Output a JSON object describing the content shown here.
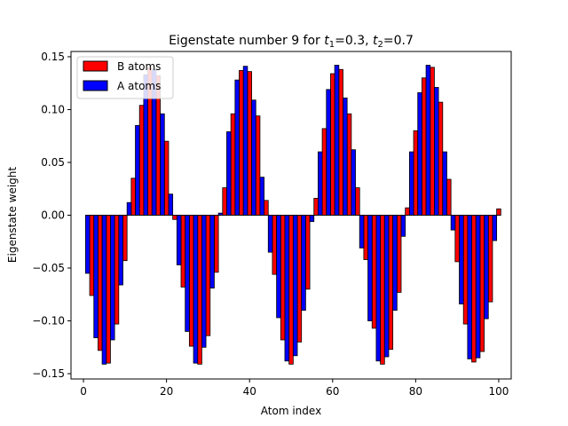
{
  "chart_data": {
    "type": "bar",
    "title_prefix": "Eigenstate number 9 for ",
    "title_t1_symbol": "t",
    "title_t1_sub": "1",
    "title_t1_value": "=0.3, ",
    "title_t2_symbol": "t",
    "title_t2_sub": "2",
    "title_t2_value": "=0.7",
    "xlabel": "Atom index",
    "ylabel": "Eigenstate weight",
    "xlim": [
      -3,
      103
    ],
    "ylim": [
      -0.155,
      0.155
    ],
    "xticks": [
      0,
      20,
      40,
      60,
      80,
      100
    ],
    "xtick_labels": [
      "0",
      "20",
      "40",
      "60",
      "80",
      "100"
    ],
    "yticks": [
      -0.15,
      -0.1,
      -0.05,
      0.0,
      0.05,
      0.1,
      0.15
    ],
    "ytick_labels": [
      "−0.15",
      "−0.10",
      "−0.05",
      "0.00",
      "0.05",
      "0.10",
      "0.15"
    ],
    "legend_position": "upper-left",
    "series": [
      {
        "name": "B atoms",
        "color": "#ff0000",
        "x": [
          2,
          4,
          6,
          8,
          10,
          12,
          14,
          16,
          18,
          20,
          22,
          24,
          26,
          28,
          30,
          32,
          34,
          36,
          38,
          40,
          42,
          44,
          46,
          48,
          50,
          52,
          54,
          56,
          58,
          60,
          62,
          64,
          66,
          68,
          70,
          72,
          74,
          76,
          78,
          80,
          82,
          84,
          86,
          88,
          90,
          92,
          94,
          96,
          98,
          100
        ],
        "values": [
          -0.076,
          -0.128,
          -0.14,
          -0.103,
          -0.043,
          0.035,
          0.104,
          0.14,
          0.132,
          0.07,
          -0.004,
          -0.068,
          -0.124,
          -0.141,
          -0.114,
          -0.054,
          0.026,
          0.096,
          0.137,
          0.136,
          0.094,
          0.014,
          -0.056,
          -0.118,
          -0.141,
          -0.12,
          -0.07,
          0.016,
          0.082,
          0.134,
          0.138,
          0.096,
          0.026,
          -0.042,
          -0.107,
          -0.141,
          -0.127,
          -0.073,
          0.007,
          0.08,
          0.13,
          0.14,
          0.107,
          0.034,
          -0.044,
          -0.103,
          -0.139,
          -0.129,
          -0.082,
          0.006
        ]
      },
      {
        "name": "A atoms",
        "color": "#0000ff",
        "x": [
          1,
          3,
          5,
          7,
          9,
          11,
          13,
          15,
          17,
          19,
          21,
          23,
          25,
          27,
          29,
          31,
          33,
          35,
          37,
          39,
          41,
          43,
          45,
          47,
          49,
          51,
          53,
          55,
          57,
          59,
          61,
          63,
          65,
          67,
          69,
          71,
          73,
          75,
          77,
          79,
          81,
          83,
          85,
          87,
          89,
          91,
          93,
          95,
          97,
          99
        ],
        "values": [
          -0.055,
          -0.116,
          -0.141,
          -0.118,
          -0.066,
          0.012,
          0.085,
          0.133,
          0.138,
          0.096,
          0.02,
          -0.047,
          -0.11,
          -0.14,
          -0.125,
          -0.069,
          0.002,
          0.079,
          0.128,
          0.141,
          0.109,
          0.036,
          -0.035,
          -0.097,
          -0.138,
          -0.133,
          -0.09,
          -0.006,
          0.06,
          0.119,
          0.142,
          0.111,
          0.062,
          -0.031,
          -0.1,
          -0.138,
          -0.134,
          -0.09,
          -0.02,
          0.06,
          0.116,
          0.142,
          0.121,
          0.06,
          -0.014,
          -0.084,
          -0.136,
          -0.135,
          -0.098,
          -0.024
        ]
      }
    ]
  }
}
